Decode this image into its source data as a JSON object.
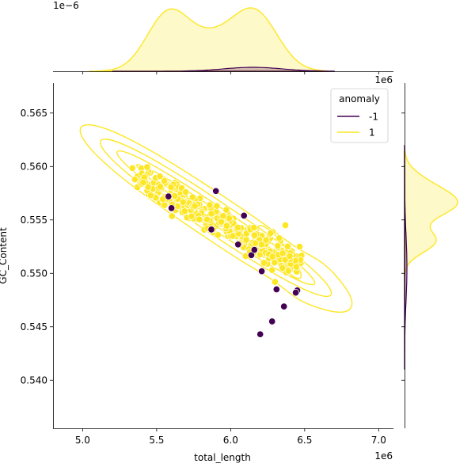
{
  "chart_data": {
    "type": "scatter",
    "xlabel": "total_length",
    "ylabel": "GC_Content",
    "x_offset_text": "1e6",
    "y_offset_text": "",
    "top_marginal_offset_text": "1e−6",
    "right_marginal_offset_text": "1e6",
    "xlim": [
      4.8,
      7.1
    ],
    "ylim": [
      0.5355,
      0.5678
    ],
    "xticks": [
      5.0,
      5.5,
      6.0,
      6.5,
      7.0
    ],
    "xtick_labels": [
      "5.0",
      "5.5",
      "6.0",
      "6.5",
      "7.0"
    ],
    "yticks": [
      0.54,
      0.545,
      0.55,
      0.555,
      0.56,
      0.565
    ],
    "ytick_labels": [
      "0.540",
      "0.545",
      "0.550",
      "0.555",
      "0.560",
      "0.565"
    ],
    "grid": false,
    "legend": {
      "title": "anomaly",
      "position": "top-right",
      "entries": [
        {
          "label": "-1",
          "color": "#440154"
        },
        {
          "label": "1",
          "color": "#fde725"
        }
      ]
    },
    "colors": {
      "anomaly": "#440154",
      "normal": "#fde725"
    },
    "marginals": {
      "top": "kde density of total_length by anomaly",
      "right": "kde density of GC_Content by anomaly"
    },
    "series": [
      {
        "name": "-1",
        "color": "#440154",
        "points": [
          [
            5.58,
            0.5572
          ],
          [
            5.6,
            0.5561
          ],
          [
            5.9,
            0.5577
          ],
          [
            6.09,
            0.5554
          ],
          [
            5.87,
            0.5541
          ],
          [
            6.05,
            0.5527
          ],
          [
            6.14,
            0.5517
          ],
          [
            6.16,
            0.5522
          ],
          [
            6.21,
            0.5502
          ],
          [
            6.31,
            0.5485
          ],
          [
            6.36,
            0.5469
          ],
          [
            6.45,
            0.5484
          ],
          [
            6.44,
            0.5482
          ],
          [
            6.28,
            0.5455
          ],
          [
            6.2,
            0.5443
          ]
        ]
      },
      {
        "name": "1",
        "color": "#fde725",
        "cluster_size": 340,
        "cluster_trend": {
          "x_start": 5.38,
          "y_start": 0.559,
          "x_end": 6.42,
          "y_end": 0.551
        },
        "outer_points": [
          [
            5.46,
            0.5573
          ],
          [
            5.41,
            0.5585
          ],
          [
            6.37,
            0.5545
          ],
          [
            6.28,
            0.5503
          ],
          [
            6.3,
            0.5492
          ],
          [
            6.35,
            0.5505
          ],
          [
            6.4,
            0.5516
          ],
          [
            6.13,
            0.552
          ]
        ],
        "contours": "kde density contours"
      }
    ]
  }
}
